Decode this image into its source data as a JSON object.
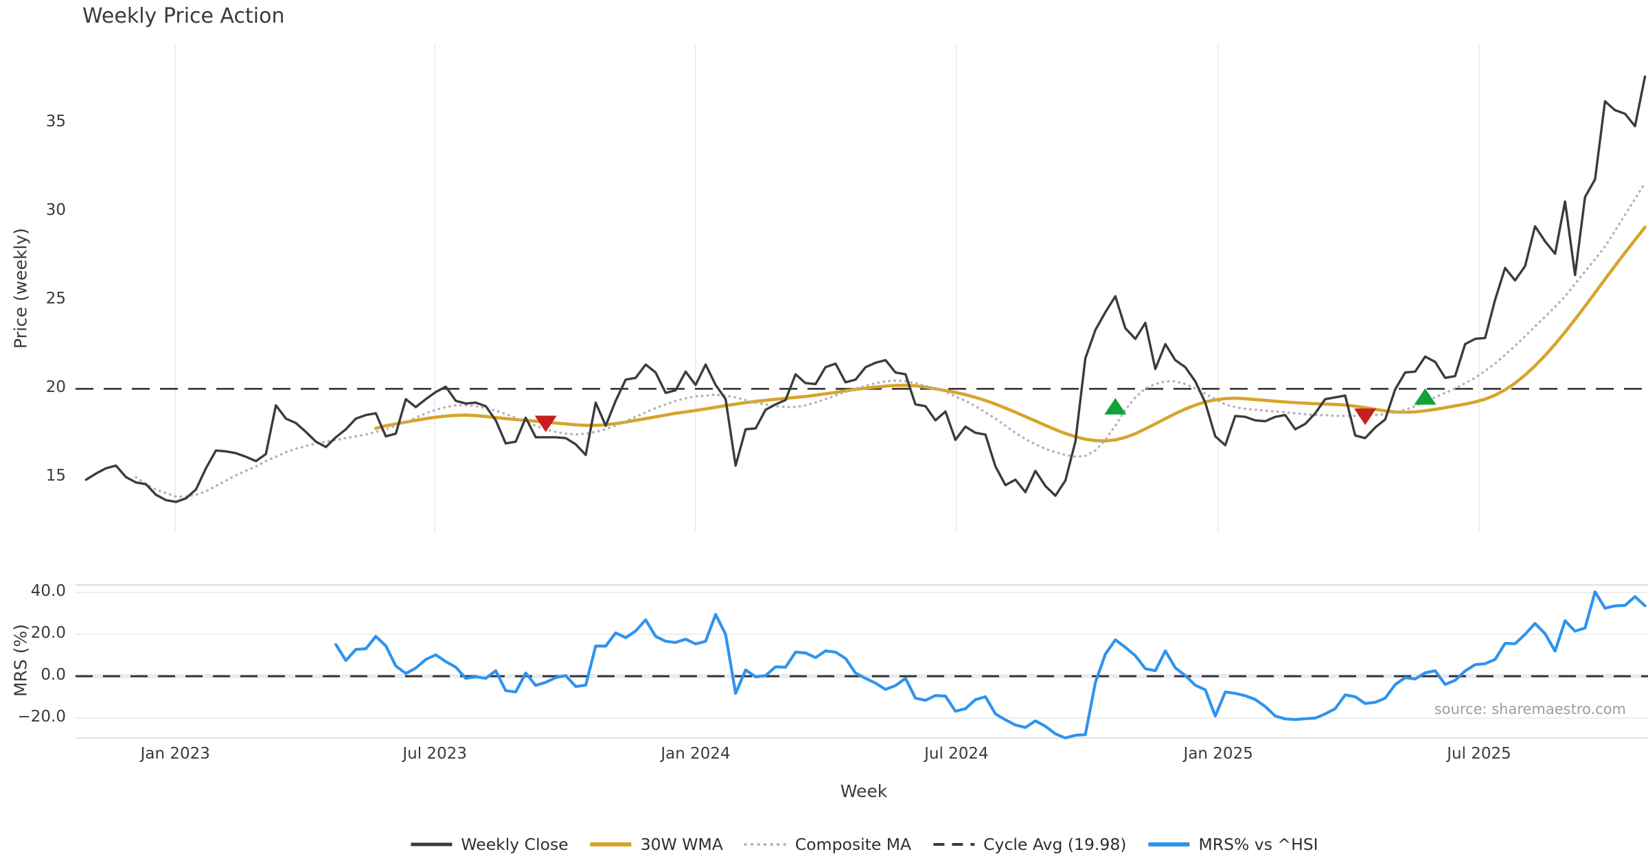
{
  "title": "Weekly Price Action",
  "source_credit": "source: sharemaestro.com",
  "colors": {
    "close": "#3b3b3b",
    "wma": "#d7a42b",
    "composite": "#b3b3b3",
    "cycle": "#3b3b3b",
    "mrs": "#2e93ee",
    "buy": "#12a13b",
    "sell": "#c81e1e",
    "grid": "#ececec",
    "spine": "#d6d6d6",
    "zero_band": "#e9ebf4",
    "text": "#3a3a3a",
    "source_text": "#9c9c9c"
  },
  "legend": {
    "items": [
      {
        "label": "Weekly Close",
        "style": "solid",
        "color": "#3b3b3b",
        "width": 5
      },
      {
        "label": "30W WMA",
        "style": "solid",
        "color": "#d7a42b",
        "width": 6
      },
      {
        "label": "Composite MA",
        "style": "dotted",
        "color": "#b3b3b3",
        "width": 4
      },
      {
        "label": "Cycle Avg (19.98)",
        "style": "dashed",
        "color": "#3b3b3b",
        "width": 4
      },
      {
        "label": "MRS% vs ^HSI",
        "style": "solid",
        "color": "#2e93ee",
        "width": 6
      }
    ]
  },
  "chart_data": {
    "type": "line",
    "x_unit": "week_index",
    "xlabel": "Week",
    "xlim": [
      -1.05,
      156.3
    ],
    "x_ticks": [
      {
        "label": "Jan 2023",
        "week": 8.93
      },
      {
        "label": "Jul 2023",
        "week": 34.9
      },
      {
        "label": "Jan 2024",
        "week": 61.0
      },
      {
        "label": "Jul 2024",
        "week": 87.1
      },
      {
        "label": "Jan 2025",
        "week": 113.3
      },
      {
        "label": "Jul 2025",
        "week": 139.4
      }
    ],
    "price_panel": {
      "ylabel": "Price (weekly)",
      "ylim": [
        11.9,
        39.4
      ],
      "yticks": [
        {
          "label": "15",
          "value": 15
        },
        {
          "label": "20",
          "value": 20
        },
        {
          "label": "25",
          "value": 25
        },
        {
          "label": "30",
          "value": 30
        },
        {
          "label": "35",
          "value": 35
        }
      ],
      "cycle_avg": 19.98,
      "grid": "vertical",
      "series": [
        {
          "name": "30W WMA",
          "style": "solid",
          "color": "#d7a42b",
          "width": 4.6,
          "start_week": 29,
          "values": [
            17.75,
            17.9,
            18.0,
            18.1,
            18.2,
            18.3,
            18.38,
            18.44,
            18.48,
            18.5,
            18.47,
            18.42,
            18.36,
            18.3,
            18.25,
            18.2,
            18.15,
            18.1,
            18.05,
            18.0,
            17.95,
            17.92,
            17.92,
            17.95,
            18.02,
            18.1,
            18.2,
            18.3,
            18.4,
            18.5,
            18.6,
            18.68,
            18.76,
            18.85,
            18.94,
            19.03,
            19.12,
            19.2,
            19.27,
            19.33,
            19.39,
            19.44,
            19.5,
            19.55,
            19.62,
            19.7,
            19.78,
            19.87,
            19.95,
            20.02,
            20.08,
            20.13,
            20.17,
            20.18,
            20.15,
            20.08,
            19.98,
            19.88,
            19.78,
            19.65,
            19.5,
            19.32,
            19.12,
            18.9,
            18.66,
            18.42,
            18.17,
            17.92,
            17.68,
            17.46,
            17.28,
            17.14,
            17.06,
            17.04,
            17.1,
            17.24,
            17.45,
            17.72,
            18.0,
            18.3,
            18.58,
            18.84,
            19.06,
            19.24,
            19.36,
            19.43,
            19.45,
            19.42,
            19.38,
            19.33,
            19.28,
            19.24,
            19.2,
            19.17,
            19.14,
            19.12,
            19.1,
            19.06,
            19.0,
            18.92,
            18.82,
            18.74,
            18.68,
            18.66,
            18.68,
            18.74,
            18.82,
            18.92,
            19.02,
            19.12,
            19.24,
            19.4,
            19.62,
            19.92,
            20.3,
            20.76,
            21.28,
            21.86,
            22.5,
            23.18,
            23.9,
            24.64,
            25.4,
            26.16,
            26.92,
            27.66,
            28.38,
            29.1
          ]
        },
        {
          "name": "Composite MA",
          "style": "dotted",
          "color": "#b3b3b3",
          "width": 3.1,
          "start_week": 5,
          "values": [
            15.0,
            14.6,
            14.3,
            14.1,
            13.9,
            13.9,
            14.0,
            14.2,
            14.5,
            14.8,
            15.1,
            15.35,
            15.6,
            15.9,
            16.15,
            16.4,
            16.6,
            16.75,
            16.9,
            17.0,
            17.1,
            17.2,
            17.3,
            17.4,
            17.55,
            17.7,
            17.9,
            18.1,
            18.35,
            18.6,
            18.8,
            18.95,
            19.05,
            19.05,
            19.0,
            18.9,
            18.75,
            18.55,
            18.35,
            18.1,
            17.9,
            17.7,
            17.55,
            17.45,
            17.4,
            17.45,
            17.55,
            17.7,
            17.9,
            18.15,
            18.4,
            18.65,
            18.9,
            19.1,
            19.3,
            19.45,
            19.55,
            19.6,
            19.65,
            19.6,
            19.5,
            19.35,
            19.2,
            19.1,
            19.0,
            18.95,
            18.95,
            19.05,
            19.2,
            19.4,
            19.6,
            19.8,
            20.0,
            20.15,
            20.3,
            20.4,
            20.45,
            20.4,
            20.3,
            20.15,
            20.0,
            19.8,
            19.55,
            19.3,
            19.0,
            18.65,
            18.3,
            17.9,
            17.5,
            17.15,
            16.85,
            16.6,
            16.4,
            16.25,
            16.15,
            16.2,
            16.5,
            17.1,
            17.9,
            18.8,
            19.5,
            20.0,
            20.25,
            20.4,
            20.4,
            20.25,
            20.0,
            19.7,
            19.4,
            19.1,
            18.95,
            18.85,
            18.8,
            18.75,
            18.7,
            18.65,
            18.6,
            18.55,
            18.5,
            18.5,
            18.45,
            18.45,
            18.45,
            18.5,
            18.5,
            18.55,
            18.65,
            18.8,
            19.0,
            19.25,
            19.5,
            19.75,
            20.0,
            20.3,
            20.6,
            21.0,
            21.4,
            21.9,
            22.4,
            22.95,
            23.5,
            24.05,
            24.6,
            25.2,
            25.9,
            26.6,
            27.3,
            28.0,
            28.9,
            29.8,
            30.7,
            31.6
          ]
        },
        {
          "name": "Weekly Close",
          "style": "solid",
          "color": "#3b3b3b",
          "width": 3.4,
          "start_week": 0,
          "values": [
            14.85,
            15.2,
            15.5,
            15.65,
            15.0,
            14.7,
            14.6,
            14.0,
            13.7,
            13.6,
            13.8,
            14.3,
            15.5,
            16.5,
            16.45,
            16.35,
            16.15,
            15.9,
            16.3,
            19.05,
            18.3,
            18.05,
            17.55,
            17.0,
            16.7,
            17.25,
            17.7,
            18.3,
            18.5,
            18.6,
            17.3,
            17.45,
            19.4,
            18.95,
            19.4,
            19.8,
            20.1,
            19.3,
            19.15,
            19.2,
            19.0,
            18.2,
            16.9,
            17.0,
            18.35,
            17.25,
            17.25,
            17.25,
            17.2,
            16.85,
            16.25,
            19.2,
            17.9,
            19.3,
            20.5,
            20.6,
            21.35,
            20.9,
            19.75,
            19.9,
            20.95,
            20.2,
            21.35,
            20.2,
            19.4,
            15.65,
            17.7,
            17.75,
            18.8,
            19.1,
            19.35,
            20.8,
            20.3,
            20.25,
            21.2,
            21.4,
            20.35,
            20.5,
            21.2,
            21.45,
            21.6,
            20.9,
            20.8,
            19.1,
            19.0,
            18.2,
            18.7,
            17.1,
            17.85,
            17.5,
            17.4,
            15.6,
            14.55,
            14.85,
            14.15,
            15.35,
            14.5,
            13.95,
            14.8,
            17.0,
            21.7,
            23.3,
            24.3,
            25.2,
            23.4,
            22.8,
            23.7,
            21.1,
            22.5,
            21.6,
            21.2,
            20.4,
            19.2,
            17.3,
            16.8,
            18.45,
            18.4,
            18.2,
            18.15,
            18.4,
            18.5,
            17.7,
            18.0,
            18.6,
            19.4,
            19.5,
            19.6,
            17.35,
            17.2,
            17.8,
            18.25,
            19.95,
            20.9,
            20.95,
            21.8,
            21.5,
            20.6,
            20.7,
            22.5,
            22.8,
            22.85,
            25.0,
            26.8,
            26.1,
            26.9,
            29.15,
            28.3,
            27.6,
            30.55,
            26.4,
            30.8,
            31.8,
            36.2,
            35.7,
            35.5,
            34.8,
            37.6
          ]
        }
      ],
      "markers": {
        "sell": [
          {
            "week": 46,
            "price": 18.0
          },
          {
            "week": 128,
            "price": 18.4
          }
        ],
        "buy": [
          {
            "week": 103,
            "price": 19.0
          },
          {
            "week": 134,
            "price": 19.55
          }
        ]
      }
    },
    "mrs_panel": {
      "ylabel": "MRS (%)",
      "ylim": [
        -29.5,
        43.6
      ],
      "yticks": [
        {
          "label": "40.0",
          "value": 40
        },
        {
          "label": "20.0",
          "value": 20
        },
        {
          "label": "0.0",
          "value": 0
        },
        {
          "label": "−20.0",
          "value": -20
        }
      ],
      "zero_line": 0,
      "grid": "horizontal",
      "series": {
        "name": "MRS% vs ^HSI",
        "style": "solid",
        "color": "#2e93ee",
        "width": 4.2,
        "start_week": 25,
        "values": [
          15.1,
          7.5,
          12.8,
          13.1,
          19.0,
          14.5,
          4.9,
          1.3,
          3.9,
          8.0,
          10.2,
          7.0,
          4.3,
          -1.0,
          -0.3,
          -1.0,
          2.6,
          -6.9,
          -7.5,
          1.5,
          -4.4,
          -2.9,
          -0.7,
          0.3,
          -4.9,
          -4.3,
          14.4,
          14.4,
          20.7,
          18.4,
          21.6,
          26.9,
          19.0,
          16.7,
          16.1,
          17.7,
          15.4,
          16.7,
          29.5,
          20.0,
          -8.2,
          3.0,
          -0.3,
          0.3,
          4.5,
          4.3,
          11.5,
          11.1,
          8.9,
          12.1,
          11.5,
          8.5,
          1.5,
          -1.0,
          -3.3,
          -6.3,
          -4.5,
          -1.0,
          -10.5,
          -11.5,
          -9.2,
          -9.5,
          -16.7,
          -15.5,
          -11.2,
          -9.8,
          -18.0,
          -20.8,
          -23.3,
          -24.5,
          -21.3,
          -23.9,
          -27.5,
          -29.5,
          -28.2,
          -27.9,
          -3.0,
          10.5,
          17.4,
          13.8,
          9.8,
          3.6,
          2.6,
          12.1,
          4.0,
          0.3,
          -4.3,
          -6.5,
          -19.0,
          -7.5,
          -8.2,
          -9.3,
          -11.1,
          -14.5,
          -19.0,
          -20.4,
          -20.7,
          -20.3,
          -20.0,
          -18.0,
          -15.5,
          -8.9,
          -9.8,
          -13.0,
          -12.5,
          -10.5,
          -4.0,
          -0.7,
          -1.3,
          1.6,
          2.6,
          -3.9,
          -2.0,
          2.5,
          5.5,
          6.0,
          8.0,
          15.7,
          15.5,
          20.0,
          25.2,
          20.3,
          12.0,
          26.5,
          21.5,
          23.0,
          40.3,
          32.5,
          33.6,
          33.8,
          38.0,
          33.6
        ]
      }
    }
  }
}
